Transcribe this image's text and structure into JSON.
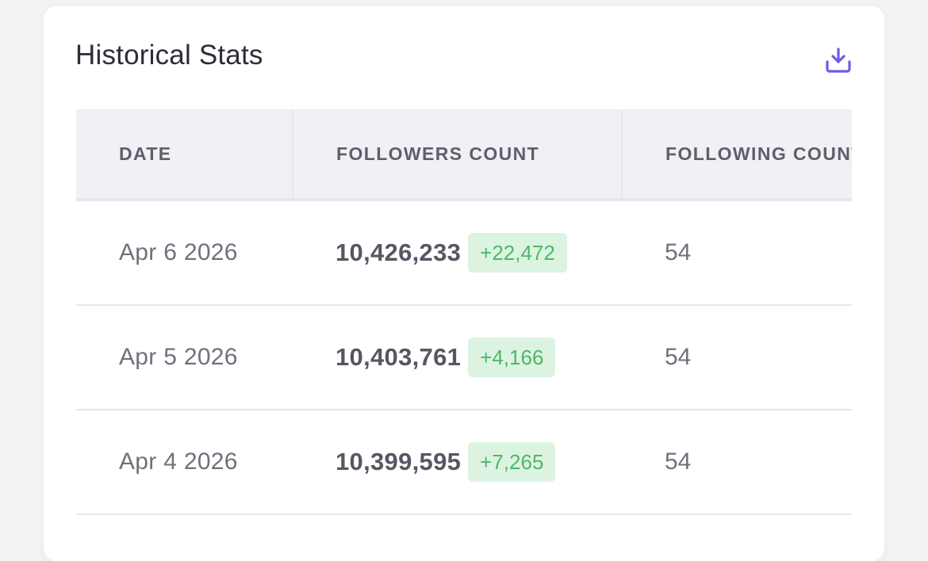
{
  "card": {
    "title": "Historical Stats",
    "download_icon": "download-icon",
    "accent_color": "#6c5ce7"
  },
  "table": {
    "columns": [
      "DATE",
      "FOLLOWERS COUNT",
      "FOLLOWING COUNT"
    ],
    "rows": [
      {
        "date": "Apr 6 2026",
        "followers": "10,426,233",
        "delta": "+22,472",
        "following": "54"
      },
      {
        "date": "Apr 5 2026",
        "followers": "10,403,761",
        "delta": "+4,166",
        "following": "54"
      },
      {
        "date": "Apr 4 2026",
        "followers": "10,399,595",
        "delta": "+7,265",
        "following": "54"
      }
    ]
  },
  "colors": {
    "delta_bg": "#ddf3e2",
    "delta_text": "#4cb866",
    "header_bg": "#f0f0f5"
  }
}
